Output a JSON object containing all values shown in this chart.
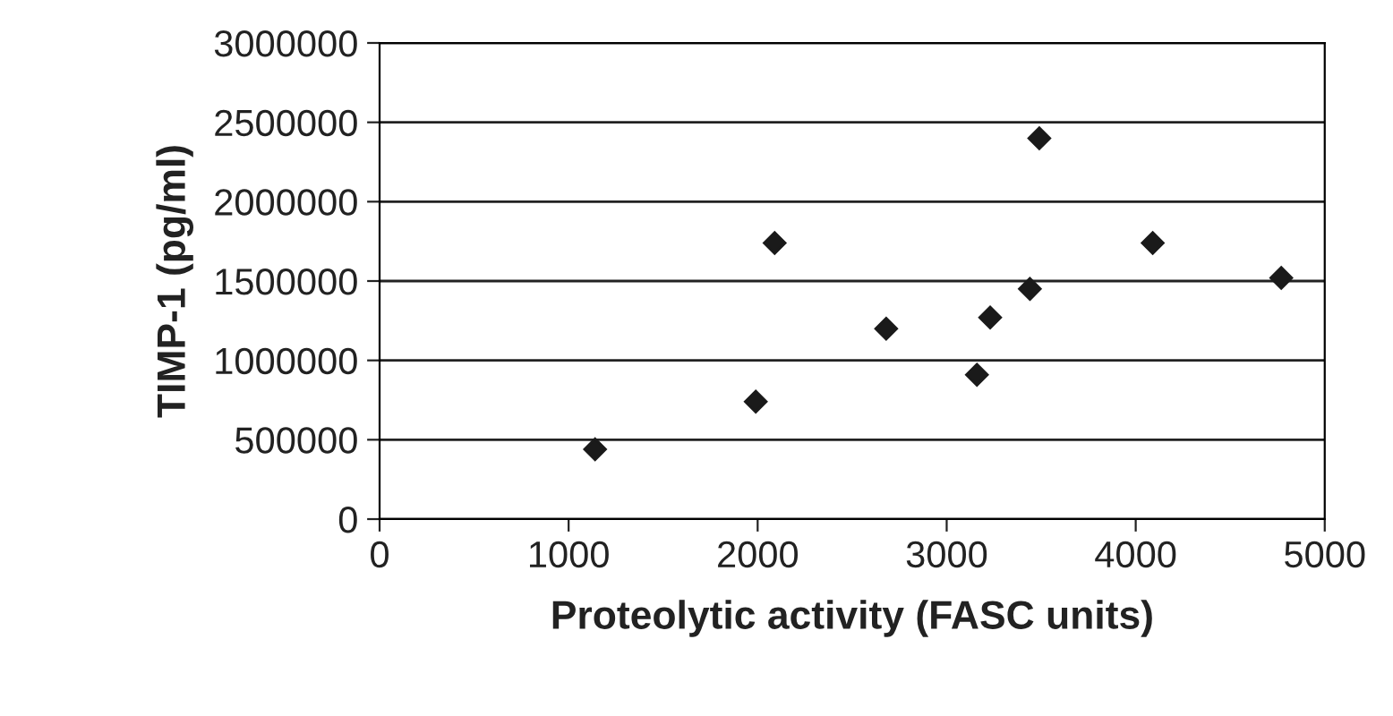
{
  "chart_data": {
    "type": "scatter",
    "xlabel": "Proteolytic activity (FASC units)",
    "ylabel": "TIMP-1 (pg/ml)",
    "x": [
      1140,
      1990,
      2090,
      2680,
      3160,
      3230,
      3440,
      3490,
      4090,
      4770
    ],
    "series": [
      {
        "color": "#1a1a1a",
        "values": [
          440000,
          740000,
          1740000,
          1200000,
          910000,
          1270000,
          1450000,
          2400000,
          1740000,
          1520000
        ]
      }
    ],
    "xlim": [
      0,
      5000
    ],
    "xticks": [
      0,
      1000,
      2000,
      3000,
      4000,
      5000
    ],
    "ylim": [
      0,
      3000000
    ],
    "yticks": [
      0,
      500000,
      1000000,
      1500000,
      2000000,
      2500000,
      3000000
    ],
    "grid": "y",
    "marker": "diamond",
    "legend": false
  }
}
